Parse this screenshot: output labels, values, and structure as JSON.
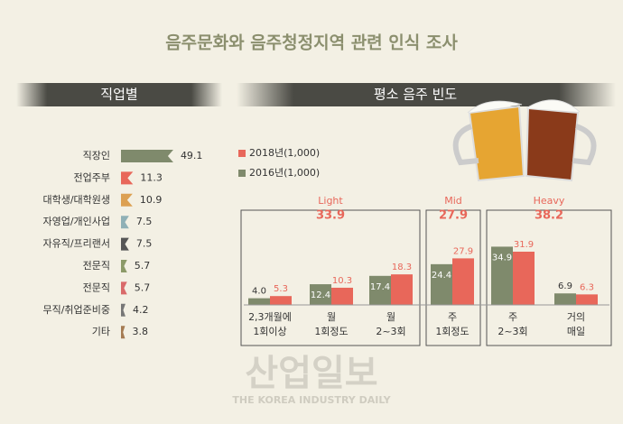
{
  "title": "음주문화와 음주청정지역 관련 인식 조사",
  "watermark": {
    "title": "산업일보",
    "subtitle": "THE KOREA INDUSTRY DAILY"
  },
  "chart_data": [
    {
      "type": "hbar",
      "title": "직업별",
      "categories": [
        "직장인",
        "전업주부",
        "대학생/대학원생",
        "자영업/개인사업",
        "자유직/프리랜서",
        "전문직",
        "전문직",
        "무직/취업준비중",
        "기타"
      ],
      "values": [
        49.1,
        11.3,
        10.9,
        7.5,
        7.5,
        5.7,
        5.7,
        4.2,
        3.8
      ],
      "colors": [
        "#7f8a6c",
        "#e8675a",
        "#dca052",
        "#8fb0b6",
        "#565656",
        "#8c9a68",
        "#d96a6a",
        "#777777",
        "#a57b52"
      ]
    },
    {
      "type": "grouped-bar",
      "title": "평소 음주 빈도",
      "groups": [
        {
          "name": "Light",
          "value": 33.9,
          "categories": [
            "2,3개월에\n1회이상",
            "월\n1회정도",
            "월\n2~3회"
          ]
        },
        {
          "name": "Mid",
          "value": 27.9,
          "categories": [
            "주\n1회정도"
          ]
        },
        {
          "name": "Heavy",
          "value": 38.2,
          "categories": [
            "주\n2~3회",
            "거의\n매일"
          ]
        }
      ],
      "series": [
        {
          "name": "2018년(1,000)",
          "color": "#e8675a",
          "values": [
            5.3,
            10.3,
            18.3,
            27.9,
            31.9,
            6.3
          ],
          "value_labels": [
            "5.3",
            "10.3",
            "18.3",
            "27.9",
            "31.9",
            "6.3"
          ]
        },
        {
          "name": "2016년(1,000)",
          "color": "#7f8a6c",
          "values": [
            4.0,
            12.4,
            17.4,
            24.4,
            34.9,
            6.9
          ],
          "value_labels": [
            "4.0",
            "12.4",
            "17.4",
            "24.4",
            "34.9",
            "6.9"
          ]
        }
      ]
    }
  ]
}
